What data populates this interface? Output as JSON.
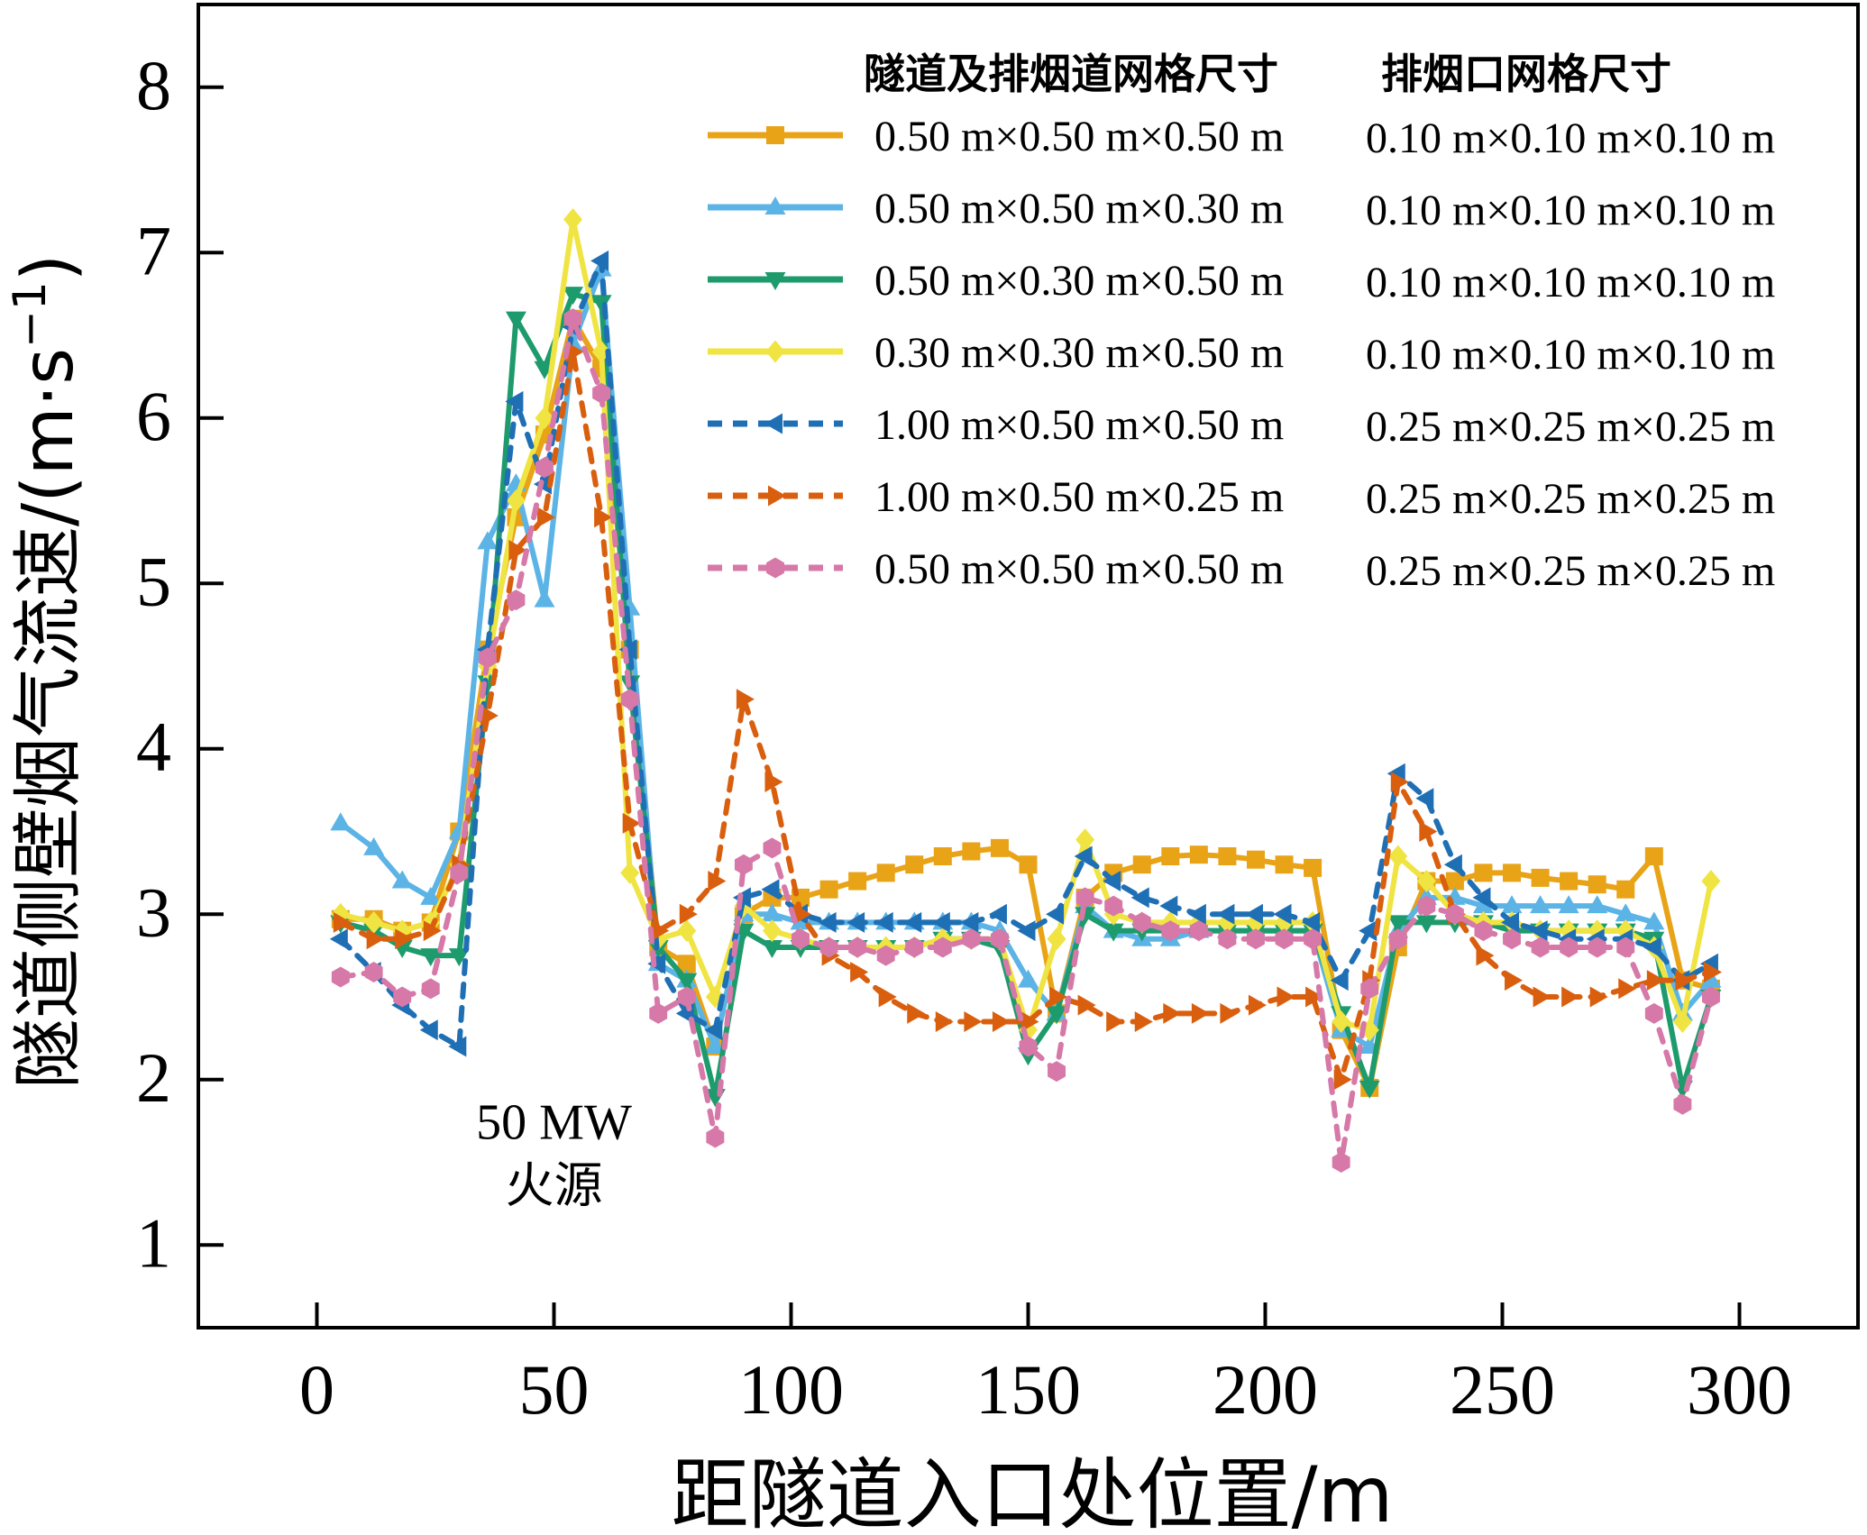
{
  "chart_data": {
    "type": "line",
    "xlabel": "距隧道入口处位置/m",
    "ylabel": "隧道侧壁烟气流速/(m·s",
    "ylabel_sup": "−1",
    "ylabel_close": ")",
    "xlim": [
      -25,
      325
    ],
    "ylim": [
      0.5,
      8.5
    ],
    "x_ticks": [
      0,
      50,
      100,
      150,
      200,
      250,
      300
    ],
    "y_ticks": [
      1,
      2,
      3,
      4,
      5,
      6,
      7,
      8
    ],
    "annotation": {
      "line1": "50 MW",
      "line2": "火源",
      "x": 50,
      "y": 1.75
    },
    "legend_position": "top-right",
    "legend_header": {
      "col1": "隧道及排烟道网格尺寸",
      "col2": "排烟口网格尺寸"
    },
    "series": [
      {
        "name": "0.50 m×0.50 m×0.50 m",
        "vent": "0.10 m×0.10 m×0.10 m",
        "color": "#E8A317",
        "dash": "solid",
        "marker": "square",
        "x": [
          5,
          12,
          18,
          24,
          30,
          36,
          42,
          48,
          54,
          60,
          66,
          72,
          78,
          84,
          90,
          96,
          102,
          108,
          114,
          120,
          126,
          132,
          138,
          144,
          150,
          156,
          162,
          168,
          174,
          180,
          186,
          192,
          198,
          204,
          210,
          216,
          222,
          228,
          234,
          240,
          246,
          252,
          258,
          264,
          270,
          276,
          282,
          288,
          294
        ],
        "y": [
          2.97,
          2.97,
          2.9,
          2.95,
          3.5,
          4.6,
          5.4,
          5.9,
          6.6,
          6.3,
          4.6,
          2.8,
          2.7,
          2.2,
          3.0,
          3.1,
          3.1,
          3.15,
          3.2,
          3.25,
          3.3,
          3.35,
          3.38,
          3.4,
          3.3,
          2.4,
          3.1,
          3.25,
          3.3,
          3.35,
          3.36,
          3.35,
          3.33,
          3.3,
          3.28,
          2.3,
          1.95,
          2.8,
          3.2,
          3.2,
          3.25,
          3.25,
          3.22,
          3.2,
          3.18,
          3.15,
          3.35,
          2.6,
          2.55
        ]
      },
      {
        "name": "0.50 m×0.50 m×0.30 m",
        "vent": "0.10 m×0.10 m×0.10 m",
        "color": "#5BB4E5",
        "dash": "solid",
        "marker": "triangle-up",
        "x": [
          5,
          12,
          18,
          24,
          30,
          36,
          42,
          48,
          54,
          60,
          66,
          72,
          78,
          84,
          90,
          96,
          102,
          108,
          114,
          120,
          126,
          132,
          138,
          144,
          150,
          156,
          162,
          168,
          174,
          180,
          186,
          192,
          198,
          204,
          210,
          216,
          222,
          228,
          234,
          240,
          246,
          252,
          258,
          264,
          270,
          276,
          282,
          288,
          294
        ],
        "y": [
          3.55,
          3.4,
          3.2,
          3.1,
          3.5,
          5.25,
          5.6,
          4.9,
          6.45,
          6.9,
          4.85,
          2.7,
          2.6,
          2.2,
          3.0,
          3.0,
          2.95,
          2.95,
          2.95,
          2.95,
          2.95,
          2.95,
          2.95,
          2.9,
          2.6,
          2.4,
          3.05,
          2.9,
          2.85,
          2.85,
          2.9,
          2.9,
          2.9,
          2.9,
          2.9,
          2.3,
          2.2,
          2.9,
          3.1,
          3.1,
          3.05,
          3.05,
          3.05,
          3.05,
          3.05,
          3.0,
          2.95,
          2.4,
          2.6
        ]
      },
      {
        "name": "0.50 m×0.30 m×0.50 m",
        "vent": "0.10 m×0.10 m×0.10 m",
        "color": "#1E9B6C",
        "dash": "solid",
        "marker": "triangle-down",
        "x": [
          5,
          12,
          18,
          24,
          30,
          36,
          42,
          48,
          54,
          60,
          66,
          72,
          78,
          84,
          90,
          96,
          102,
          108,
          114,
          120,
          126,
          132,
          138,
          144,
          150,
          156,
          162,
          168,
          174,
          180,
          186,
          192,
          198,
          204,
          210,
          216,
          222,
          228,
          234,
          240,
          246,
          252,
          258,
          264,
          270,
          276,
          282,
          288,
          294
        ],
        "y": [
          2.95,
          2.9,
          2.8,
          2.75,
          2.75,
          4.4,
          6.6,
          6.3,
          6.75,
          6.7,
          4.4,
          2.8,
          2.6,
          1.9,
          2.9,
          2.8,
          2.8,
          2.8,
          2.8,
          2.8,
          2.8,
          2.85,
          2.85,
          2.8,
          2.15,
          2.4,
          3.0,
          2.9,
          2.9,
          2.9,
          2.9,
          2.9,
          2.9,
          2.9,
          2.9,
          2.4,
          1.95,
          2.95,
          2.95,
          2.95,
          2.95,
          2.9,
          2.9,
          2.9,
          2.9,
          2.9,
          2.85,
          1.95,
          2.5
        ]
      },
      {
        "name": "0.30 m×0.30 m×0.50 m",
        "vent": "0.10 m×0.10 m×0.10 m",
        "color": "#F0E442",
        "dash": "solid",
        "marker": "diamond",
        "x": [
          5,
          12,
          18,
          24,
          30,
          36,
          42,
          48,
          54,
          60,
          66,
          72,
          78,
          84,
          90,
          96,
          102,
          108,
          114,
          120,
          126,
          132,
          138,
          144,
          150,
          156,
          162,
          168,
          174,
          180,
          186,
          192,
          198,
          204,
          210,
          216,
          222,
          228,
          234,
          240,
          246,
          252,
          258,
          264,
          270,
          276,
          282,
          288,
          294
        ],
        "y": [
          3.0,
          2.95,
          2.9,
          2.95,
          3.3,
          4.5,
          5.5,
          6.0,
          7.2,
          6.4,
          3.25,
          2.85,
          2.9,
          2.5,
          3.05,
          2.9,
          2.85,
          2.8,
          2.8,
          2.8,
          2.8,
          2.85,
          2.85,
          2.85,
          2.3,
          2.85,
          3.45,
          3.0,
          2.95,
          2.95,
          2.95,
          2.95,
          2.95,
          2.95,
          2.95,
          2.35,
          2.3,
          3.35,
          3.2,
          3.0,
          2.95,
          2.95,
          2.9,
          2.9,
          2.9,
          2.9,
          2.8,
          2.35,
          3.2
        ]
      },
      {
        "name": "1.00 m×0.50 m×0.50 m",
        "vent": "0.25 m×0.25 m×0.25 m",
        "color": "#1F6FB5",
        "dash": "dashed",
        "marker": "triangle-left",
        "x": [
          5,
          12,
          18,
          24,
          30,
          36,
          42,
          48,
          54,
          60,
          66,
          72,
          78,
          84,
          90,
          96,
          102,
          108,
          114,
          120,
          126,
          132,
          138,
          144,
          150,
          156,
          162,
          168,
          174,
          180,
          186,
          192,
          198,
          204,
          210,
          216,
          222,
          228,
          234,
          240,
          246,
          252,
          258,
          264,
          270,
          276,
          282,
          288,
          294
        ],
        "y": [
          2.85,
          2.65,
          2.45,
          2.3,
          2.2,
          4.6,
          6.1,
          5.6,
          6.55,
          6.95,
          4.6,
          2.7,
          2.4,
          2.3,
          3.1,
          3.15,
          3.0,
          2.95,
          2.95,
          2.95,
          2.95,
          2.95,
          2.95,
          3.0,
          2.9,
          3.0,
          3.35,
          3.2,
          3.1,
          3.05,
          3.0,
          3.0,
          3.0,
          3.0,
          2.95,
          2.6,
          2.9,
          3.85,
          3.7,
          3.3,
          3.1,
          2.95,
          2.9,
          2.85,
          2.85,
          2.85,
          2.8,
          2.6,
          2.7
        ]
      },
      {
        "name": "1.00 m×0.50 m×0.25 m",
        "vent": "0.25 m×0.25 m×0.25 m",
        "color": "#D95F0E",
        "dash": "dashed",
        "marker": "triangle-right",
        "x": [
          5,
          12,
          18,
          24,
          30,
          36,
          42,
          48,
          54,
          60,
          66,
          72,
          78,
          84,
          90,
          96,
          102,
          108,
          114,
          120,
          126,
          132,
          138,
          144,
          150,
          156,
          162,
          168,
          174,
          180,
          186,
          192,
          198,
          204,
          210,
          216,
          222,
          228,
          234,
          240,
          246,
          252,
          258,
          264,
          270,
          276,
          282,
          288,
          294
        ],
        "y": [
          2.95,
          2.85,
          2.85,
          2.9,
          3.3,
          4.2,
          5.2,
          5.4,
          6.4,
          5.4,
          3.55,
          2.9,
          3.0,
          3.2,
          4.3,
          3.8,
          3.0,
          2.75,
          2.65,
          2.5,
          2.4,
          2.35,
          2.35,
          2.35,
          2.35,
          2.5,
          2.45,
          2.35,
          2.35,
          2.4,
          2.4,
          2.4,
          2.45,
          2.5,
          2.5,
          2.0,
          2.6,
          3.8,
          3.5,
          3.0,
          2.75,
          2.6,
          2.5,
          2.5,
          2.5,
          2.55,
          2.6,
          2.6,
          2.65
        ]
      },
      {
        "name": "0.50 m×0.50 m×0.50 m",
        "vent": "0.25 m×0.25 m×0.25 m",
        "color": "#D678A8",
        "dash": "dashed",
        "marker": "hexagon",
        "x": [
          5,
          12,
          18,
          24,
          30,
          36,
          42,
          48,
          54,
          60,
          66,
          72,
          78,
          84,
          90,
          96,
          102,
          108,
          114,
          120,
          126,
          132,
          138,
          144,
          150,
          156,
          162,
          168,
          174,
          180,
          186,
          192,
          198,
          204,
          210,
          216,
          222,
          228,
          234,
          240,
          246,
          252,
          258,
          264,
          270,
          276,
          282,
          288,
          294
        ],
        "y": [
          2.62,
          2.65,
          2.5,
          2.55,
          3.25,
          4.55,
          4.9,
          5.7,
          6.6,
          6.15,
          4.3,
          2.4,
          2.5,
          1.65,
          3.3,
          3.4,
          2.85,
          2.8,
          2.8,
          2.75,
          2.8,
          2.8,
          2.85,
          2.85,
          2.2,
          2.05,
          3.1,
          3.05,
          2.95,
          2.9,
          2.9,
          2.85,
          2.85,
          2.85,
          2.85,
          1.5,
          2.55,
          2.85,
          3.05,
          3.0,
          2.9,
          2.85,
          2.8,
          2.8,
          2.8,
          2.8,
          2.4,
          1.85,
          2.5
        ]
      }
    ]
  }
}
